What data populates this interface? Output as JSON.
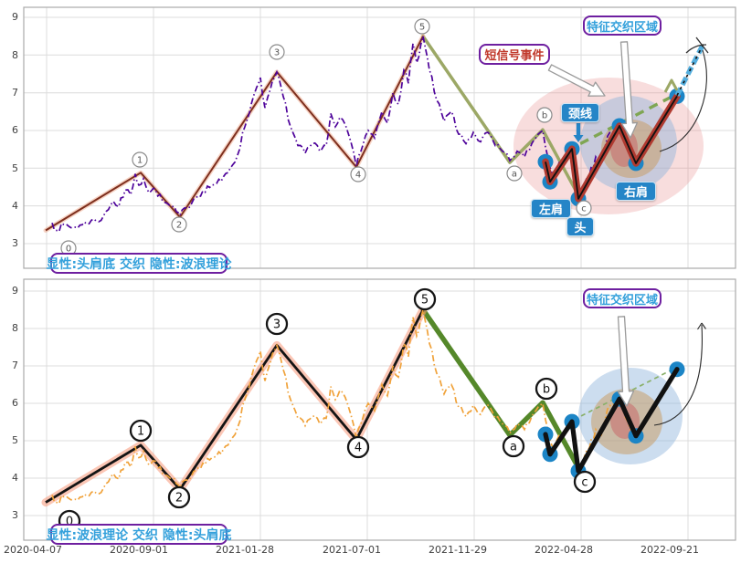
{
  "figure": {
    "background": "#ffffff"
  },
  "colors": {
    "grid": "#dcdcdc",
    "frame": "#ababab",
    "tick_text": "#3f3f3f",
    "price_top": "#4D029A",
    "price_bottom": "#F0A23A",
    "wave_top": "#7E2F1E",
    "wave_top_halo": "rgba(240,170,140,0.5)",
    "wave_bottom": "#141414",
    "wave_bottom_halo": "rgba(247,151,120,0.55)",
    "abc_top": "#9CA866",
    "abc_bottom": "#55882A",
    "hs_top": "#B03A30",
    "hs_core": "#111111",
    "hs_bottom": "#111111",
    "marker_dot": "#1C85C6",
    "neckline_top": "#7FA653",
    "neckline_bottom": "#8AB06A",
    "breakout_blue": "#54AEDE",
    "tag_blue_bg": "#2585C7",
    "tag_purple_border": "#6E1FA0",
    "tag_text_blue": "#33A0DB",
    "tag_text_red": "#C0392B",
    "ellipse_pink": "rgba(232,144,144,0.30)",
    "ellipse_blue": "rgba(143,179,220,0.45)",
    "ellipse_tan": "rgba(200,154,94,0.50)",
    "ellipse_red": "rgba(201,106,106,0.55)",
    "arrow_white_fill": "#ffffff",
    "arrow_white_stroke": "#9a9a9a",
    "thin_curve": "#2b2b2b"
  },
  "axis": {
    "x_labels": [
      "2020-04-07",
      "2020-09-01",
      "2021-01-28",
      "2021-07-01",
      "2021-11-29",
      "2022-04-28",
      "2022-09-21"
    ],
    "y_labels": [
      "9",
      "8",
      "7",
      "6",
      "5",
      "4",
      "3"
    ]
  },
  "top": {
    "caption": "显性:头肩底 交织 隐性:波浪理论",
    "region_label": "特征交织区域",
    "signal_label": "短信号事件",
    "neckline_label": "颈线",
    "left_shoulder_label": "左肩",
    "head_label": "头",
    "right_shoulder_label": "右肩"
  },
  "bottom": {
    "caption": "显性:波浪理论 交织 隐性:头肩底",
    "region_label": "特征交织区域"
  },
  "chart_data": {
    "type": "line",
    "x_tick_labels": [
      "2020-04-07",
      "2020-09-01",
      "2021-01-28",
      "2021-07-01",
      "2021-11-29",
      "2022-04-28",
      "2022-09-21"
    ],
    "y_ticks": [
      3,
      4,
      5,
      6,
      7,
      8,
      9
    ],
    "ylim": [
      2.6,
      9.3
    ],
    "grid": true,
    "panels": [
      {
        "name": "top",
        "caption": "显性:头肩底 交织 隐性:波浪理论",
        "explicit": "头肩底",
        "implicit": "波浪理论"
      },
      {
        "name": "bottom",
        "caption": "显性:波浪理论 交织 隐性:头肩底",
        "explicit": "波浪理论",
        "implicit": "头肩底"
      }
    ],
    "elliott_wave": {
      "labels": [
        "0",
        "1",
        "2",
        "3",
        "4",
        "5"
      ],
      "points": [
        [
          50,
          3.35
        ],
        [
          154,
          4.88
        ],
        [
          197,
          3.7
        ],
        [
          303,
          7.55
        ],
        [
          390,
          5.03
        ],
        [
          463,
          8.5
        ]
      ]
    },
    "abc_wave": {
      "labels": [
        "a",
        "b",
        "c"
      ],
      "points": [
        [
          558,
          5.15
        ],
        [
          594,
          6.02
        ],
        [
          633,
          4.28
        ]
      ]
    },
    "head_shoulders": {
      "roles": [
        "left-shoulder-start",
        "left-shoulder-low",
        "neck-peak-1",
        "head-low",
        "neck-peak-2",
        "right-shoulder-low",
        "breakout-high"
      ],
      "points": [
        [
          597,
          5.17
        ],
        [
          602,
          4.64
        ],
        [
          626,
          5.51
        ],
        [
          633,
          4.19
        ],
        [
          678,
          6.12
        ],
        [
          696,
          5.13
        ],
        [
          741,
          6.91
        ]
      ]
    },
    "neckline": [
      [
        620,
        5.46
      ],
      [
        746,
        7.03
      ]
    ],
    "breakout_projection": [
      [
        741,
        6.93
      ],
      [
        770,
        8.3
      ]
    ],
    "price_keypoints": [
      [
        57,
        3.55
      ],
      [
        62,
        3.35
      ],
      [
        70,
        3.5
      ],
      [
        80,
        3.42
      ],
      [
        90,
        3.5
      ],
      [
        100,
        3.62
      ],
      [
        108,
        3.58
      ],
      [
        116,
        3.85
      ],
      [
        124,
        4.12
      ],
      [
        130,
        3.98
      ],
      [
        137,
        4.42
      ],
      [
        143,
        4.3
      ],
      [
        148,
        4.85
      ],
      [
        152,
        4.55
      ],
      [
        157,
        4.72
      ],
      [
        163,
        4.35
      ],
      [
        170,
        4.45
      ],
      [
        178,
        4.12
      ],
      [
        186,
        4.0
      ],
      [
        193,
        3.85
      ],
      [
        197,
        3.75
      ],
      [
        204,
        3.95
      ],
      [
        212,
        4.18
      ],
      [
        222,
        4.4
      ],
      [
        232,
        4.55
      ],
      [
        242,
        4.65
      ],
      [
        252,
        5.0
      ],
      [
        260,
        5.35
      ],
      [
        268,
        6.1
      ],
      [
        275,
        6.7
      ],
      [
        281,
        7.15
      ],
      [
        285,
        7.4
      ],
      [
        290,
        6.6
      ],
      [
        296,
        7.1
      ],
      [
        303,
        7.55
      ],
      [
        310,
        6.9
      ],
      [
        318,
        6.1
      ],
      [
        326,
        5.6
      ],
      [
        334,
        5.4
      ],
      [
        342,
        5.65
      ],
      [
        350,
        5.45
      ],
      [
        357,
        5.6
      ],
      [
        362,
        6.45
      ],
      [
        367,
        6.1
      ],
      [
        372,
        6.35
      ],
      [
        378,
        6.15
      ],
      [
        384,
        5.7
      ],
      [
        390,
        5.05
      ],
      [
        397,
        5.6
      ],
      [
        403,
        6.0
      ],
      [
        410,
        5.8
      ],
      [
        418,
        6.5
      ],
      [
        424,
        6.2
      ],
      [
        430,
        7.0
      ],
      [
        436,
        6.7
      ],
      [
        442,
        7.6
      ],
      [
        447,
        7.25
      ],
      [
        452,
        8.3
      ],
      [
        456,
        7.8
      ],
      [
        463,
        8.5
      ],
      [
        470,
        7.6
      ],
      [
        478,
        6.8
      ],
      [
        486,
        6.25
      ],
      [
        494,
        6.5
      ],
      [
        502,
        5.9
      ],
      [
        510,
        5.65
      ],
      [
        518,
        5.95
      ],
      [
        526,
        5.7
      ],
      [
        534,
        5.95
      ],
      [
        542,
        5.6
      ],
      [
        550,
        5.45
      ],
      [
        558,
        5.2
      ],
      [
        566,
        5.45
      ],
      [
        574,
        5.3
      ],
      [
        582,
        5.65
      ],
      [
        589,
        5.9
      ],
      [
        594,
        6.0
      ],
      [
        600,
        5.25
      ],
      [
        605,
        4.8
      ],
      [
        612,
        5.15
      ],
      [
        620,
        5.35
      ],
      [
        626,
        5.5
      ],
      [
        631,
        4.7
      ],
      [
        634,
        4.3
      ],
      [
        640,
        4.6
      ],
      [
        645,
        4.8
      ],
      [
        652,
        5.3
      ],
      [
        658,
        5.15
      ],
      [
        665,
        5.85
      ],
      [
        672,
        6.0
      ],
      [
        678,
        6.1
      ],
      [
        684,
        5.65
      ],
      [
        690,
        5.3
      ],
      [
        696,
        5.15
      ],
      [
        704,
        5.45
      ],
      [
        712,
        5.8
      ],
      [
        720,
        6.1
      ],
      [
        728,
        6.35
      ],
      [
        735,
        6.6
      ],
      [
        741,
        6.88
      ]
    ]
  }
}
